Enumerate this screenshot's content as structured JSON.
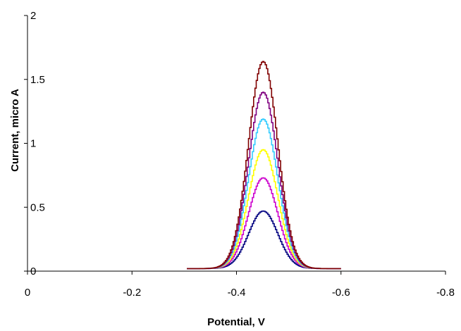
{
  "chart_data": {
    "type": "line",
    "title": "",
    "xlabel": "Potential, V",
    "ylabel": "Current, micro A",
    "xlim": [
      0,
      -0.8
    ],
    "ylim": [
      0,
      2
    ],
    "xticks": [
      0,
      -0.2,
      -0.4,
      -0.6,
      -0.8
    ],
    "xtick_labels": [
      "0",
      "-0.2",
      "-0.4",
      "-0.6",
      "-0.8"
    ],
    "yticks": [
      0,
      0.5,
      1,
      1.5,
      2
    ],
    "ytick_labels": [
      "0",
      "0.5",
      "1",
      "1.5",
      "2"
    ],
    "grid": false,
    "legend": "none",
    "x_range": [
      -0.305,
      -0.6
    ],
    "peak_x": -0.45,
    "series": [
      {
        "color": "#000080",
        "peak": 0.47,
        "baseline": 0.02
      },
      {
        "color": "#cc00cc",
        "peak": 0.73,
        "baseline": 0.02
      },
      {
        "color": "#ffff00",
        "peak": 0.95,
        "baseline": 0.02
      },
      {
        "color": "#33ccff",
        "peak": 1.19,
        "baseline": 0.02
      },
      {
        "color": "#800080",
        "peak": 1.4,
        "baseline": 0.02
      },
      {
        "color": "#800000",
        "peak": 1.64,
        "baseline": 0.02
      }
    ]
  }
}
